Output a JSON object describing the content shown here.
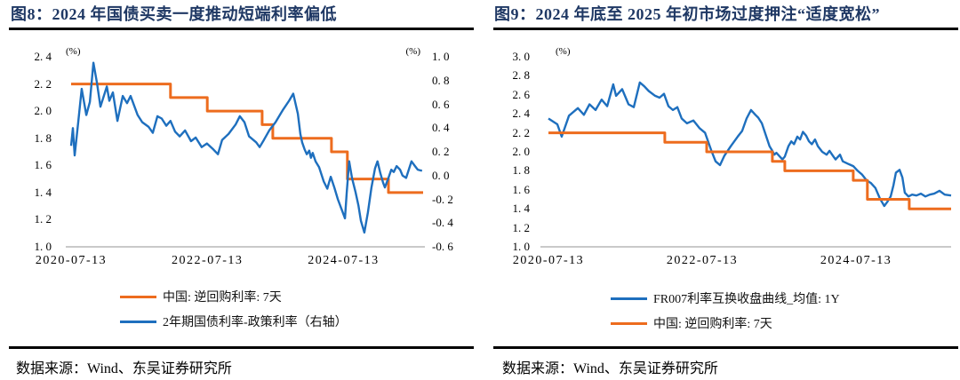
{
  "colors": {
    "title_navy": "#1F3864",
    "orange_line": "#ED6C1E",
    "blue_line": "#1E6FBE",
    "axis_baseline_gray": "#C9C9C9",
    "divider_black": "#000000"
  },
  "figures": [
    {
      "title": "图8：2024 年国债买卖一度推动短端利率偏低",
      "source": "数据来源：Wind、东吴证券研究所",
      "legend": [
        {
          "label": "中国: 逆回购利率: 7天",
          "color": "#ED6C1E",
          "marker": "line"
        },
        {
          "label": "2年期国债利率-政策利率（右轴）",
          "color": "#1E6FBE",
          "marker": "line"
        }
      ]
    },
    {
      "title": "图9：2024 年底至 2025 年初市场过度押注“适度宽松”",
      "source": "数据来源：Wind、东吴证券研究所",
      "legend": [
        {
          "label": "FR007利率互换收盘曲线_均值: 1Y",
          "color": "#1E6FBE",
          "marker": "line"
        },
        {
          "label": "中国: 逆回购利率: 7天",
          "color": "#ED6C1E",
          "marker": "line"
        }
      ]
    }
  ],
  "chart_data": [
    {
      "type": "line",
      "title": "图8：2024 年国债买卖一度推动短端利率偏低",
      "grid": "off",
      "legend_position": "below",
      "x_axis": {
        "start": "2020-07-13",
        "end": "2025-08"
      },
      "x_ticks": [
        {
          "label": "2020-07-13",
          "f": 0.0
        },
        {
          "label": "2022-07-13",
          "f": 0.385
        },
        {
          "label": "2024-07-13",
          "f": 0.77
        }
      ],
      "y_axis_left": {
        "unit": "(%)",
        "min": 1.0,
        "max": 2.4,
        "tick_labels": [
          "2. 4",
          "2. 2",
          "2. 0",
          "1. 8",
          "1. 6",
          "1. 4",
          "1. 2",
          "1. 0"
        ]
      },
      "y_axis_right": {
        "unit": "(%)",
        "min": -0.6,
        "max": 1.0,
        "tick_labels": [
          "1. 0",
          "0. 8",
          "0. 6",
          "0. 4",
          "0. 2",
          "0. 0",
          "-0. 2",
          "-0. 4",
          "-0. 6"
        ]
      },
      "series": [
        {
          "name": "中国: 逆回购利率: 7天",
          "axis": "left",
          "color": "#ED6C1E",
          "width": 3,
          "shape": "step",
          "points": [
            [
              0,
              2.2
            ],
            [
              0.281,
              2.2
            ],
            [
              0.281,
              2.1
            ],
            [
              0.385,
              2.1
            ],
            [
              0.385,
              2.0
            ],
            [
              0.54,
              2.0
            ],
            [
              0.54,
              1.9
            ],
            [
              0.57,
              1.9
            ],
            [
              0.57,
              1.8
            ],
            [
              0.736,
              1.8
            ],
            [
              0.736,
              1.7
            ],
            [
              0.781,
              1.7
            ],
            [
              0.781,
              1.5
            ],
            [
              0.897,
              1.5
            ],
            [
              0.897,
              1.4
            ],
            [
              0.995,
              1.4
            ]
          ]
        },
        {
          "name": "2年期国债利率-政策利率（右轴）",
          "axis": "right",
          "color": "#1E6FBE",
          "width": 2.4,
          "shape": "noisy",
          "points": [
            [
              0,
              0.25
            ],
            [
              0.005,
              0.4
            ],
            [
              0.01,
              0.17
            ],
            [
              0.02,
              0.45
            ],
            [
              0.03,
              0.73
            ],
            [
              0.043,
              0.51
            ],
            [
              0.053,
              0.62
            ],
            [
              0.063,
              0.95
            ],
            [
              0.073,
              0.78
            ],
            [
              0.083,
              0.58
            ],
            [
              0.101,
              0.75
            ],
            [
              0.108,
              0.63
            ],
            [
              0.118,
              0.7
            ],
            [
              0.131,
              0.46
            ],
            [
              0.146,
              0.67
            ],
            [
              0.158,
              0.61
            ],
            [
              0.168,
              0.67
            ],
            [
              0.188,
              0.51
            ],
            [
              0.201,
              0.45
            ],
            [
              0.219,
              0.41
            ],
            [
              0.231,
              0.36
            ],
            [
              0.244,
              0.5
            ],
            [
              0.256,
              0.48
            ],
            [
              0.269,
              0.42
            ],
            [
              0.281,
              0.46
            ],
            [
              0.294,
              0.37
            ],
            [
              0.307,
              0.33
            ],
            [
              0.322,
              0.38
            ],
            [
              0.339,
              0.29
            ],
            [
              0.352,
              0.32
            ],
            [
              0.369,
              0.24
            ],
            [
              0.384,
              0.27
            ],
            [
              0.402,
              0.22
            ],
            [
              0.415,
              0.18
            ],
            [
              0.427,
              0.3
            ],
            [
              0.445,
              0.35
            ],
            [
              0.465,
              0.43
            ],
            [
              0.477,
              0.5
            ],
            [
              0.49,
              0.45
            ],
            [
              0.503,
              0.33
            ],
            [
              0.523,
              0.28
            ],
            [
              0.533,
              0.24
            ],
            [
              0.545,
              0.3
            ],
            [
              0.56,
              0.38
            ],
            [
              0.578,
              0.45
            ],
            [
              0.598,
              0.55
            ],
            [
              0.616,
              0.63
            ],
            [
              0.628,
              0.69
            ],
            [
              0.641,
              0.52
            ],
            [
              0.648,
              0.35
            ],
            [
              0.653,
              0.28
            ],
            [
              0.66,
              0.22
            ],
            [
              0.666,
              0.18
            ],
            [
              0.673,
              0.21
            ],
            [
              0.678,
              0.15
            ],
            [
              0.683,
              0.19
            ],
            [
              0.691,
              0.12
            ],
            [
              0.701,
              0.07
            ],
            [
              0.714,
              -0.05
            ],
            [
              0.724,
              -0.11
            ],
            [
              0.729,
              -0.06
            ],
            [
              0.734,
              -0.01
            ],
            [
              0.744,
              -0.1
            ],
            [
              0.754,
              -0.2
            ],
            [
              0.764,
              -0.28
            ],
            [
              0.774,
              -0.36
            ],
            [
              0.779,
              -0.15
            ],
            [
              0.786,
              0.12
            ],
            [
              0.794,
              -0.02
            ],
            [
              0.804,
              -0.14
            ],
            [
              0.812,
              -0.25
            ],
            [
              0.819,
              -0.38
            ],
            [
              0.829,
              -0.48
            ],
            [
              0.839,
              -0.31
            ],
            [
              0.849,
              -0.1
            ],
            [
              0.859,
              0.06
            ],
            [
              0.866,
              0.12
            ],
            [
              0.874,
              0.02
            ],
            [
              0.882,
              -0.06
            ],
            [
              0.887,
              -0.1
            ],
            [
              0.897,
              -0.02
            ],
            [
              0.905,
              0.05
            ],
            [
              0.912,
              0.03
            ],
            [
              0.92,
              0.08
            ],
            [
              0.93,
              0.05
            ],
            [
              0.937,
              0.0
            ],
            [
              0.947,
              -0.02
            ],
            [
              0.962,
              0.12
            ],
            [
              0.972,
              0.08
            ],
            [
              0.98,
              0.05
            ],
            [
              0.992,
              0.04
            ]
          ]
        }
      ]
    },
    {
      "type": "line",
      "title": "图9：2024 年底至 2025 年初市场过度押注“适度宽松”",
      "grid": "off",
      "legend_position": "below",
      "x_axis": {
        "start": "2020-07-13",
        "end": "2025-09"
      },
      "x_ticks": [
        {
          "label": "2020-07-13",
          "f": 0.0
        },
        {
          "label": "2022-07-13",
          "f": 0.382
        },
        {
          "label": "2024-07-13",
          "f": 0.764
        }
      ],
      "y_axis_left": {
        "unit": "(%)",
        "min": 1.0,
        "max": 3.0,
        "tick_labels": [
          "3. 0",
          "2. 8",
          "2. 6",
          "2. 4",
          "2. 2",
          "2. 0",
          "1. 8",
          "1. 6",
          "1. 4",
          "1. 2",
          "1. 0"
        ]
      },
      "series": [
        {
          "name": "FR007利率互换收盘曲线_均值: 1Y",
          "axis": "left",
          "color": "#1E6FBE",
          "width": 2.4,
          "shape": "noisy",
          "points": [
            [
              0,
              2.35
            ],
            [
              0.022,
              2.29
            ],
            [
              0.033,
              2.16
            ],
            [
              0.051,
              2.38
            ],
            [
              0.073,
              2.46
            ],
            [
              0.088,
              2.39
            ],
            [
              0.102,
              2.5
            ],
            [
              0.117,
              2.44
            ],
            [
              0.132,
              2.55
            ],
            [
              0.146,
              2.48
            ],
            [
              0.161,
              2.71
            ],
            [
              0.168,
              2.59
            ],
            [
              0.183,
              2.66
            ],
            [
              0.199,
              2.5
            ],
            [
              0.212,
              2.47
            ],
            [
              0.227,
              2.73
            ],
            [
              0.238,
              2.69
            ],
            [
              0.249,
              2.64
            ],
            [
              0.265,
              2.59
            ],
            [
              0.276,
              2.57
            ],
            [
              0.287,
              2.61
            ],
            [
              0.298,
              2.48
            ],
            [
              0.309,
              2.44
            ],
            [
              0.32,
              2.47
            ],
            [
              0.331,
              2.35
            ],
            [
              0.344,
              2.3
            ],
            [
              0.36,
              2.33
            ],
            [
              0.375,
              2.25
            ],
            [
              0.389,
              2.2
            ],
            [
              0.404,
              2.02
            ],
            [
              0.415,
              1.9
            ],
            [
              0.426,
              1.86
            ],
            [
              0.437,
              1.96
            ],
            [
              0.453,
              2.06
            ],
            [
              0.47,
              2.16
            ],
            [
              0.481,
              2.22
            ],
            [
              0.492,
              2.35
            ],
            [
              0.503,
              2.44
            ],
            [
              0.514,
              2.39
            ],
            [
              0.521,
              2.36
            ],
            [
              0.53,
              2.3
            ],
            [
              0.541,
              2.16
            ],
            [
              0.549,
              2.06
            ],
            [
              0.556,
              2.01
            ],
            [
              0.561,
              1.97
            ],
            [
              0.566,
              1.99
            ],
            [
              0.581,
              1.92
            ],
            [
              0.587,
              1.95
            ],
            [
              0.596,
              2.06
            ],
            [
              0.603,
              2.11
            ],
            [
              0.61,
              2.08
            ],
            [
              0.618,
              2.16
            ],
            [
              0.625,
              2.13
            ],
            [
              0.632,
              2.21
            ],
            [
              0.64,
              2.17
            ],
            [
              0.647,
              2.11
            ],
            [
              0.654,
              2.08
            ],
            [
              0.662,
              2.13
            ],
            [
              0.669,
              2.06
            ],
            [
              0.68,
              2.0
            ],
            [
              0.691,
              1.97
            ],
            [
              0.698,
              2.01
            ],
            [
              0.708,
              1.95
            ],
            [
              0.713,
              1.92
            ],
            [
              0.724,
              1.97
            ],
            [
              0.731,
              1.9
            ],
            [
              0.746,
              1.87
            ],
            [
              0.757,
              1.85
            ],
            [
              0.768,
              1.8
            ],
            [
              0.779,
              1.76
            ],
            [
              0.79,
              1.7
            ],
            [
              0.801,
              1.67
            ],
            [
              0.812,
              1.62
            ],
            [
              0.823,
              1.51
            ],
            [
              0.834,
              1.43
            ],
            [
              0.841,
              1.47
            ],
            [
              0.85,
              1.53
            ],
            [
              0.857,
              1.65
            ],
            [
              0.863,
              1.78
            ],
            [
              0.872,
              1.81
            ],
            [
              0.879,
              1.73
            ],
            [
              0.885,
              1.57
            ],
            [
              0.894,
              1.53
            ],
            [
              0.903,
              1.55
            ],
            [
              0.914,
              1.54
            ],
            [
              0.925,
              1.56
            ],
            [
              0.936,
              1.53
            ],
            [
              0.947,
              1.55
            ],
            [
              0.958,
              1.56
            ],
            [
              0.971,
              1.59
            ],
            [
              0.984,
              1.55
            ],
            [
              1,
              1.54
            ]
          ]
        },
        {
          "name": "中国: 逆回购利率: 7天",
          "axis": "left",
          "color": "#ED6C1E",
          "width": 3,
          "shape": "step",
          "points": [
            [
              0,
              2.2
            ],
            [
              0.289,
              2.2
            ],
            [
              0.289,
              2.1
            ],
            [
              0.393,
              2.1
            ],
            [
              0.393,
              2.0
            ],
            [
              0.556,
              2.0
            ],
            [
              0.556,
              1.9
            ],
            [
              0.587,
              1.9
            ],
            [
              0.587,
              1.8
            ],
            [
              0.757,
              1.8
            ],
            [
              0.757,
              1.7
            ],
            [
              0.792,
              1.7
            ],
            [
              0.792,
              1.5
            ],
            [
              0.896,
              1.5
            ],
            [
              0.896,
              1.4
            ],
            [
              1,
              1.4
            ]
          ]
        }
      ]
    }
  ]
}
